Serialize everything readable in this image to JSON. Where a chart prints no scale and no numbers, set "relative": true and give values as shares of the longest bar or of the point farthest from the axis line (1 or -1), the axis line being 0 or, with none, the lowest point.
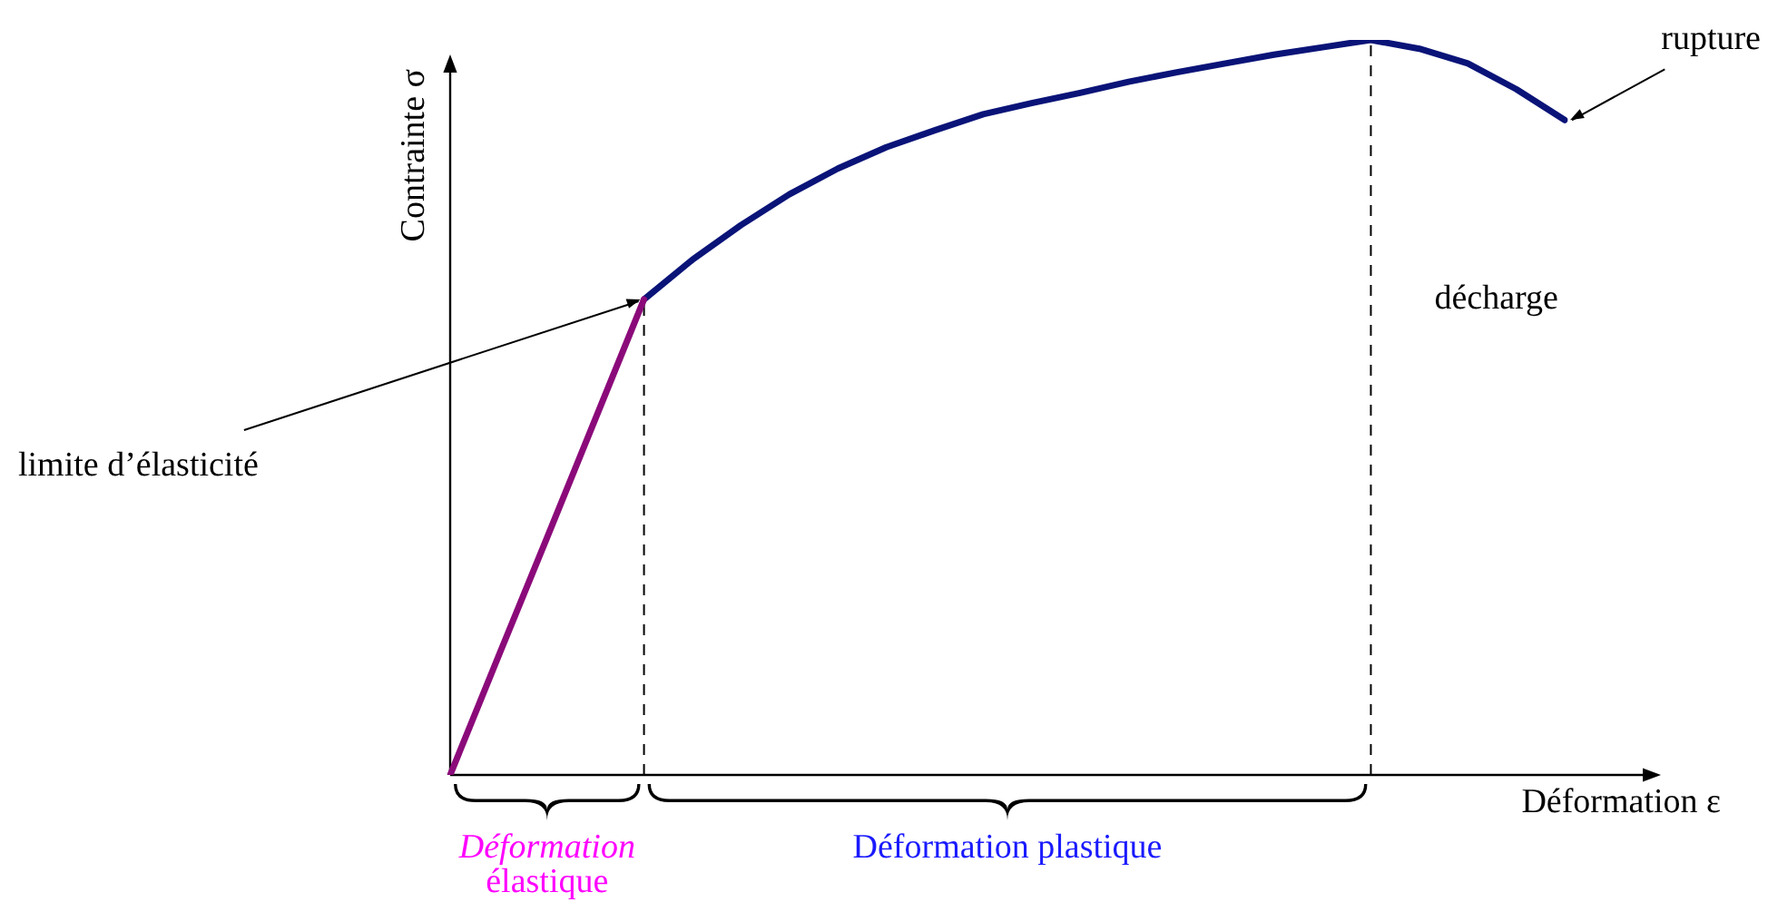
{
  "chart_data": {
    "type": "line",
    "relative": true,
    "xlabel": "Déformation ε",
    "ylabel": "Contrainte σ",
    "legend": false,
    "marker": "none",
    "line_style": "solid",
    "categories": [
      null,
      null,
      null,
      null,
      null,
      null,
      null,
      null,
      null,
      null,
      null,
      null,
      null,
      null,
      null,
      null,
      null,
      null,
      null,
      null,
      null,
      null,
      null,
      null
    ],
    "series": [
      {
        "color": "#8b0a7a",
        "values": [
          0,
          0.162,
          0.323,
          0.485,
          0.647,
          null,
          null,
          null,
          null,
          null,
          null,
          null,
          null,
          null,
          null,
          null,
          null,
          null,
          null,
          null,
          null,
          null,
          null,
          null
        ]
      },
      {
        "color": "#0a1478",
        "values": [
          null,
          null,
          null,
          null,
          0.647,
          0.701,
          0.748,
          0.79,
          0.825,
          0.854,
          0.877,
          0.899,
          0.914,
          0.928,
          0.943,
          0.956,
          0.968,
          0.98,
          0.99,
          1,
          0.988,
          0.968,
          0.933,
          0.891
        ]
      }
    ],
    "annotations": [
      "limite d’élasticité",
      "rupture",
      "décharge",
      "Déformation élastique",
      "Déformation plastique"
    ]
  }
}
